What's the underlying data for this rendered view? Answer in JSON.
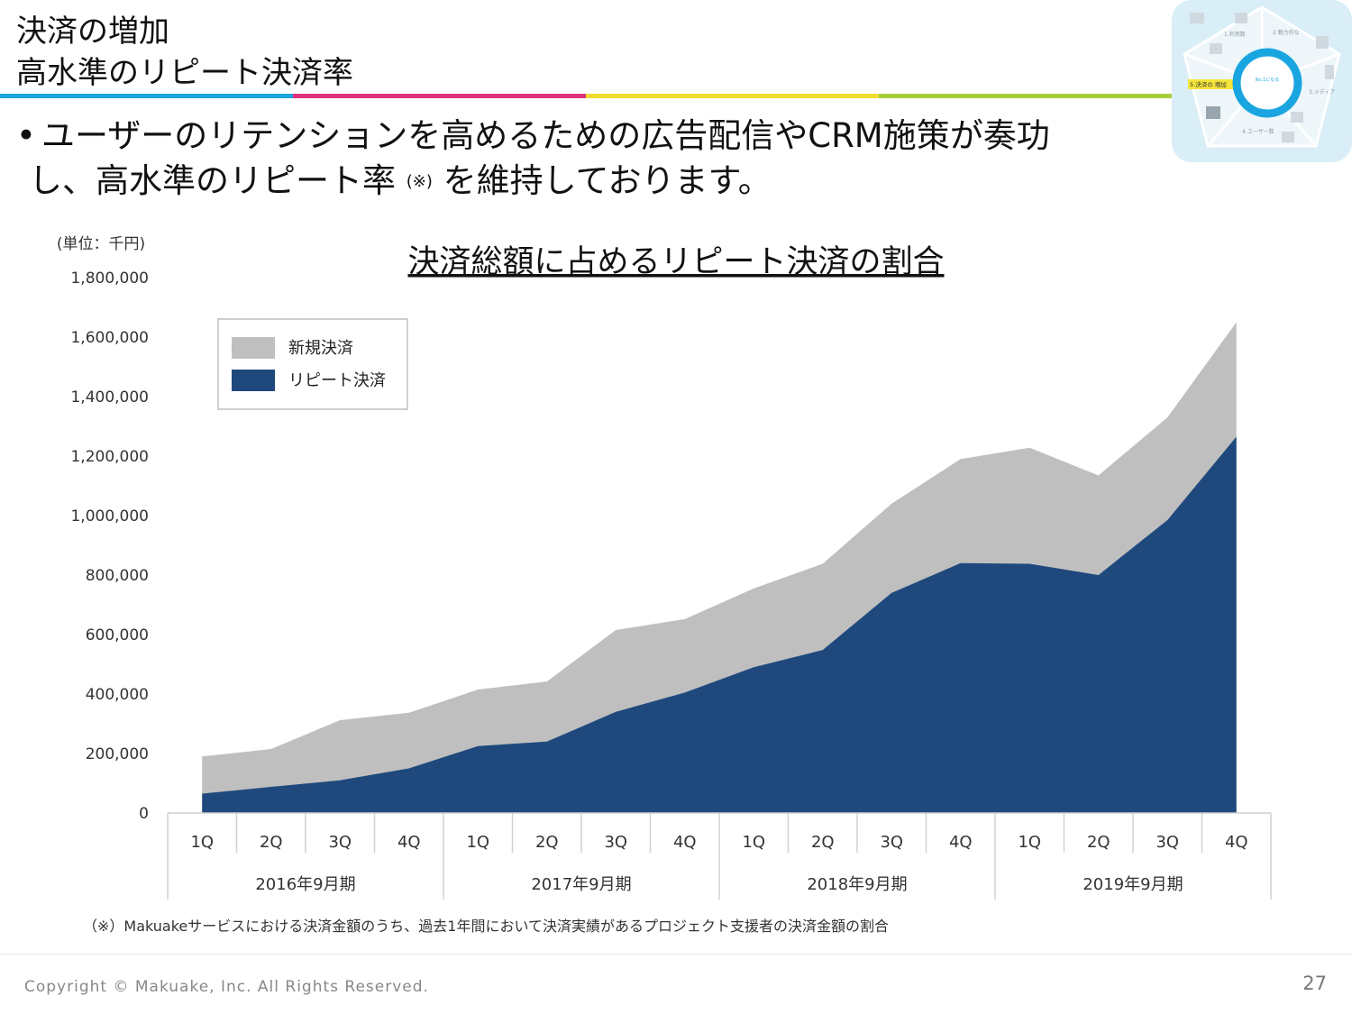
{
  "header": {
    "title_line1": "決済の増加",
    "title_line2": "高水準のリピート決済率",
    "accent_colors": [
      "#1aa6dd",
      "#e0307a",
      "#f0dc30",
      "#a8cf3a"
    ]
  },
  "bullet": {
    "line1": "ユーザーのリテンションを高めるための広告配信やCRM施策が奏功",
    "line2_a": "し、高水準のリピート率",
    "note_mark": "(※)",
    "line2_b": "を維持しております。"
  },
  "diagram": {
    "center_text": "今にない新しいものが最初に見つかり、手に入る場所としてNo.1になる",
    "items": [
      "1.利用数 お問合せ",
      "2.魅力的な プロジェクト 増加",
      "3.メディア 掲載による 認知度の向上",
      "4.ユーザー数 の増加",
      "5.決済の 増加"
    ],
    "highlight_color": "#f5e43a",
    "ring_color": "#19a6e0"
  },
  "chart_data": {
    "type": "area",
    "title": "決済総額に占めるリピート決済の割合",
    "unit_label": "(単位：千円)",
    "ylim": [
      0,
      1800000
    ],
    "yticks": [
      "1,800,000",
      "1,600,000",
      "1,400,000",
      "1,200,000",
      "1,000,000",
      "800,000",
      "600,000",
      "400,000",
      "200,000",
      "0"
    ],
    "categories": [
      "1Q",
      "2Q",
      "3Q",
      "4Q",
      "1Q",
      "2Q",
      "3Q",
      "4Q",
      "1Q",
      "2Q",
      "3Q",
      "4Q",
      "1Q",
      "2Q",
      "3Q",
      "4Q"
    ],
    "groups": [
      "2016年9月期",
      "2017年9月期",
      "2018年9月期",
      "2019年9月期"
    ],
    "stacked": true,
    "legend_position": "top-left",
    "series": [
      {
        "name": "リピート決済",
        "color": "#1f497d",
        "values": [
          65000,
          88000,
          110000,
          150000,
          225000,
          240000,
          340000,
          405000,
          490000,
          548000,
          740000,
          840000,
          838000,
          800000,
          985000,
          1265000
        ]
      },
      {
        "name": "新規決済",
        "color": "#bfbfbf",
        "values": [
          125000,
          127000,
          202000,
          187000,
          190000,
          202000,
          275000,
          247000,
          265000,
          290000,
          300000,
          350000,
          390000,
          335000,
          345000,
          385000
        ]
      }
    ]
  },
  "footnote": "（※）Makuakeサービスにおける決済金額のうち、過去1年間において決済実績があるプロジェクト支援者の決済金額の割合",
  "footer": {
    "copyright": "Copyright © Makuake, Inc. All Rights Reserved.",
    "page_number": "27"
  }
}
